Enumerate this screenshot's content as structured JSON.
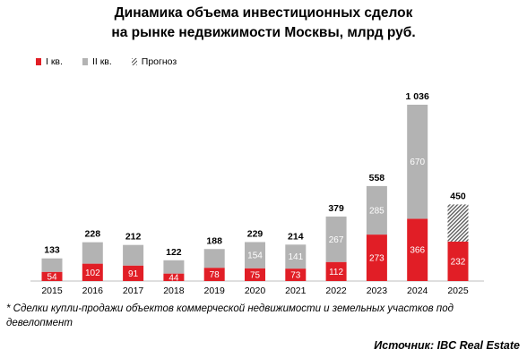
{
  "title_line1": "Динамика объема инвестиционных сделок",
  "title_line2": "на рынке недвижимости Москвы, млрд руб.",
  "footnote": "* Сделки купли-продажи объектов коммерческой недвижимости и земельных участков под девелопмент",
  "source": "Источник: IBC Real Estate",
  "colors": {
    "q1": "#e11e26",
    "q2": "#b3b3b3",
    "forecast_hatch": "#555555"
  },
  "chart_data": {
    "type": "bar",
    "stacked": true,
    "categories": [
      "2015",
      "2016",
      "2017",
      "2018",
      "2019",
      "2020",
      "2021",
      "2022",
      "2023",
      "2024",
      "2025"
    ],
    "series": [
      {
        "name": "I кв.",
        "values": [
          54,
          102,
          91,
          44,
          78,
          75,
          73,
          112,
          273,
          366,
          232
        ]
      },
      {
        "name": "II кв.",
        "values": [
          79,
          126,
          121,
          78,
          110,
          154,
          141,
          267,
          285,
          670,
          null
        ]
      },
      {
        "name": "Прогноз",
        "values": [
          null,
          null,
          null,
          null,
          null,
          null,
          null,
          null,
          null,
          null,
          218
        ]
      }
    ],
    "totals": [
      133,
      228,
      212,
      122,
      188,
      229,
      214,
      379,
      558,
      1036,
      450
    ],
    "segment_labels": {
      "I кв.": [
        "54",
        "102",
        "91",
        "44",
        "78",
        "75",
        "73",
        "112",
        "273",
        "366",
        "232"
      ],
      "II кв.": [
        "",
        "",
        "",
        "",
        "",
        "154",
        "141",
        "267",
        "285",
        "670",
        ""
      ]
    },
    "total_labels": [
      "133",
      "228",
      "212",
      "122",
      "188",
      "229",
      "214",
      "379",
      "558",
      "1 036",
      "450"
    ],
    "legend": [
      "I кв.",
      "II кв.",
      "Прогноз"
    ],
    "legend_position": "top-left",
    "ylim": [
      0,
      1036
    ],
    "grid": false
  }
}
